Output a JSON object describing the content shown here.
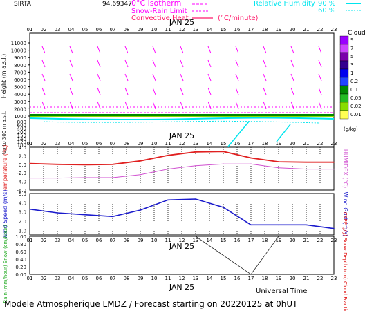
{
  "header": {
    "site": "SIRTA",
    "coords": "94.69347",
    "legend": {
      "isotherm": "0°C isotherm",
      "snow_rain": "Snow-Rain Limit",
      "convective": "Convective Heat.",
      "convective_unit": "(°C/minute)",
      "humidity_title": "Relative Humidity",
      "humidity_90": "90 %",
      "humidity_60": "60 %"
    }
  },
  "axis_hours": [
    "01",
    "02",
    "03",
    "04",
    "05",
    "06",
    "07",
    "08",
    "09",
    "10",
    "11",
    "12",
    "13",
    "14",
    "15",
    "16",
    "17",
    "18",
    "19",
    "20",
    "21",
    "22",
    "23"
  ],
  "axis_hours_odd": [
    "01",
    "03",
    "05",
    "07",
    "09",
    "11",
    "13",
    "15",
    "17",
    "19",
    "21",
    "23"
  ],
  "date_label": "JAN 25",
  "footer": {
    "universal_time": "Universal Time",
    "model_title": "Modele Atmospherique LMDZ / Forecast starting on 20220125 at 0hUT"
  },
  "colors": {
    "temperature": "#e02020",
    "humidex": "#d050d0",
    "wind": "#1a1acc",
    "isotherm": "#ff00ff",
    "humidity": "#00e5ee",
    "wind_barb": "#ff00ff",
    "precip": "#222222"
  },
  "chart_data": [
    {
      "type": "heatmap",
      "panel": "clouds",
      "ylabel": "Height (m a.s.l.)",
      "ylabel_low": "Up to 300 m a.s.l.",
      "yticks_upper": [
        "11000",
        "10000",
        "9000",
        "8000",
        "7000",
        "6000",
        "5000",
        "4000",
        "3000",
        "2000",
        "1000"
      ],
      "yticks_lower": [
        "1000",
        "800",
        "600",
        "400",
        "200",
        "150",
        "140",
        "120",
        "100"
      ],
      "colorbar_title": "Clouds",
      "colorbar_unit": "(g/kg)",
      "colorbar_ticks": [
        "9",
        "7",
        "5",
        "3",
        "1",
        "0.2",
        "0.1",
        "0.05",
        "0.02",
        "0.01"
      ],
      "colorbar_colors": [
        "#9a00ff",
        "#cc44ff",
        "#7a00aa",
        "#33008f",
        "#0000ee",
        "#2244ff",
        "#008800",
        "#22bb22",
        "#88dd00",
        "#ffff55"
      ]
    },
    {
      "type": "line",
      "panel": "temperature",
      "ylabel": "Temperature (°C)",
      "y2label": "HUMIDEX (°C)",
      "yticks": [
        "4.0",
        "2.0",
        "0.0",
        "-2.0",
        "-4.0",
        "-6.0"
      ],
      "ylim": [
        -6,
        4
      ],
      "x": [
        1,
        3,
        5,
        7,
        9,
        11,
        13,
        15,
        17,
        19,
        21,
        23
      ],
      "series": [
        {
          "name": "Temperature",
          "values": [
            0.2,
            0.0,
            -0.1,
            0.0,
            0.8,
            2.1,
            2.9,
            3.0,
            1.5,
            0.6,
            0.5,
            0.5
          ]
        },
        {
          "name": "HUMIDEX",
          "values": [
            -3.2,
            -3.2,
            -3.1,
            -3.1,
            -2.4,
            -1.1,
            -0.3,
            0.1,
            0.1,
            -0.8,
            -1.1,
            -1.1
          ]
        }
      ]
    },
    {
      "type": "line",
      "panel": "wind",
      "ylabel": "Wind Speed (m/s)",
      "y2label": "Wind Gust (m/s)",
      "yticks": [
        "5.0",
        "4.0",
        "3.0",
        "2.0",
        "1.0"
      ],
      "ylim": [
        0.5,
        5
      ],
      "x": [
        1,
        3,
        5,
        7,
        9,
        11,
        13,
        15,
        17,
        19,
        21,
        23
      ],
      "series": [
        {
          "name": "Wind Speed",
          "values": [
            3.3,
            2.9,
            2.7,
            2.5,
            3.2,
            4.3,
            4.4,
            3.5,
            1.6,
            1.6,
            1.6,
            1.2
          ]
        }
      ]
    },
    {
      "type": "line",
      "panel": "precipitation",
      "ylabel": "Rain (mm/hour) Snow (cm/hour)",
      "y2label": "CAPE (J/g) Snow Depth (cm) Cloud Fraction",
      "yticks": [
        "1.00",
        "0.80",
        "0.60",
        "0.40",
        "0.20",
        "0.00"
      ],
      "ylim": [
        0,
        1
      ],
      "x": [
        13,
        17,
        19
      ],
      "series": [
        {
          "name": "Cloud Fraction",
          "values": [
            1.0,
            0.0,
            1.0
          ]
        }
      ]
    }
  ]
}
